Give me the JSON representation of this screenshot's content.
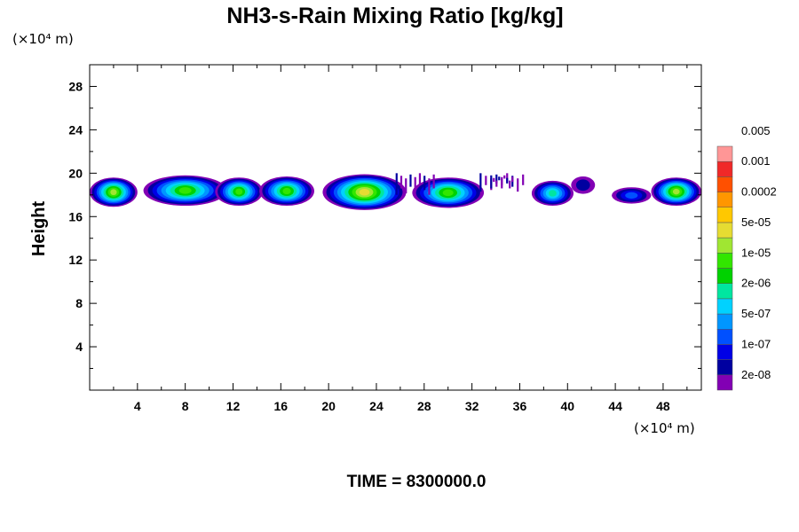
{
  "chart_data": {
    "type": "heatmap",
    "title": "NH3-s-Rain Mixing Ratio [kg/kg]",
    "xlabel": "",
    "ylabel": "Height",
    "x_unit_label": "(×10⁴ m)",
    "y_unit_label": "(×10⁴ m)",
    "xlim": [
      0,
      51.2
    ],
    "ylim": [
      0,
      30
    ],
    "x_ticks": [
      4,
      8,
      12,
      16,
      20,
      24,
      28,
      32,
      36,
      40,
      44,
      48
    ],
    "x_tick_labels": [
      "4",
      "8",
      "12",
      "16",
      "20",
      "24",
      "28",
      "32",
      "36",
      "40",
      "44",
      "48"
    ],
    "y_ticks": [
      4,
      8,
      12,
      16,
      20,
      24,
      28
    ],
    "y_tick_labels": [
      "4",
      "8",
      "12",
      "16",
      "20",
      "24",
      "28"
    ],
    "grid": false,
    "colorbar": {
      "levels": [
        "2e-08",
        "1e-07",
        "5e-07",
        "2e-06",
        "1e-05",
        "5e-05",
        "0.0002",
        "0.001",
        "0.005"
      ],
      "colors": [
        "#8200b4",
        "#0000a0",
        "#0000e6",
        "#0050ff",
        "#0096ff",
        "#00d2ff",
        "#00e6a0",
        "#00d200",
        "#32e600",
        "#a0e632",
        "#e6dc32",
        "#ffc800",
        "#ff9600",
        "#ff5000",
        "#f02828",
        "#ff9696"
      ]
    },
    "cells": [
      {
        "x": [
          0,
          4
        ],
        "y": [
          16.9,
          19.6
        ],
        "peak": 9
      },
      {
        "x": [
          4.5,
          11.5
        ],
        "y": [
          17.0,
          19.8
        ],
        "peak": 8
      },
      {
        "x": [
          10.5,
          14.5
        ],
        "y": [
          17.0,
          19.6
        ],
        "peak": 8
      },
      {
        "x": [
          14.2,
          18.8
        ],
        "y": [
          17.0,
          19.7
        ],
        "peak": 8
      },
      {
        "x": [
          19.5,
          26.5
        ],
        "y": [
          16.6,
          19.9
        ],
        "peak": 10
      },
      {
        "x": [
          27.0,
          33.0
        ],
        "y": [
          16.8,
          19.6
        ],
        "peak": 8
      },
      {
        "x": [
          37.0,
          40.5
        ],
        "y": [
          17.0,
          19.3
        ],
        "peak": 6
      },
      {
        "x": [
          40.3,
          42.3
        ],
        "y": [
          18.1,
          19.7
        ],
        "peak": 1
      },
      {
        "x": [
          43.7,
          47.0
        ],
        "y": [
          17.2,
          18.7
        ],
        "peak": 3
      },
      {
        "x": [
          47.0,
          51.2
        ],
        "y": [
          17.0,
          19.6
        ],
        "peak": 9
      }
    ],
    "wisps": [
      {
        "x": [
          25.5,
          29.0
        ],
        "y": [
          18.0,
          20.0
        ]
      },
      {
        "x": [
          32.5,
          36.5
        ],
        "y": [
          18.3,
          20.0
        ]
      },
      {
        "x": [
          33.5,
          35.5
        ],
        "y": [
          18.6,
          19.8
        ]
      }
    ]
  },
  "footer": {
    "time_label": "TIME = 8300000.0"
  }
}
